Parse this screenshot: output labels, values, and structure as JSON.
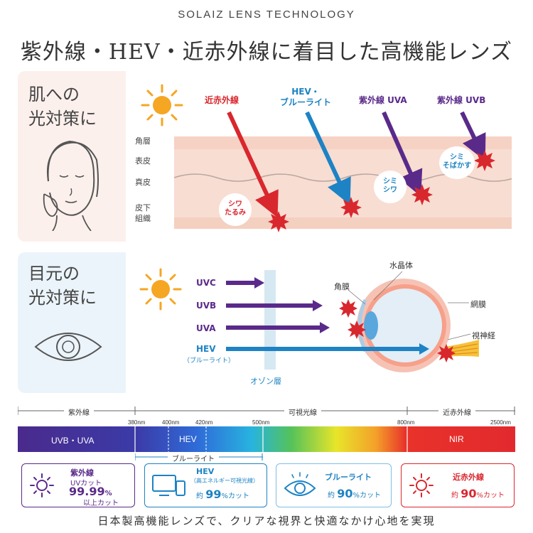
{
  "header": {
    "brand": "SOLAIZ LENS TECHNOLOGY",
    "headline": "紫外線・HEV・近赤外線に着目した高機能レンズ"
  },
  "skin": {
    "title_line1": "肌への",
    "title_line2": "光対策に",
    "layers": [
      "角層",
      "表皮",
      "真皮",
      "皮下",
      "組織"
    ],
    "arrows": [
      {
        "label": "近赤外線",
        "color": "#d9272e"
      },
      {
        "label_line1": "HEV・",
        "label_line2": "ブルーライト",
        "color": "#1d83c4"
      },
      {
        "label": "紫外線 UVA",
        "color": "#5a2a8a"
      },
      {
        "label": "紫外線 UVB",
        "color": "#5a2a8a"
      }
    ],
    "bubbles": [
      {
        "line1": "シワ",
        "line2": "たるみ"
      },
      {
        "line1": "シミ",
        "line2": "シワ"
      },
      {
        "line1": "シミ",
        "line2": "そばかす"
      }
    ]
  },
  "eye": {
    "title_line1": "目元の",
    "title_line2": "光対策に",
    "rays": [
      {
        "label": "UVC",
        "color": "#5a2a8a"
      },
      {
        "label": "UVB",
        "color": "#5a2a8a"
      },
      {
        "label": "UVA",
        "color": "#5a2a8a"
      },
      {
        "label": "HEV",
        "sub": "（ブルーライト）",
        "color": "#1d83c4"
      }
    ],
    "ozone": "オゾン層",
    "parts": {
      "lens": "水晶体",
      "cornea": "角膜",
      "retina": "網膜",
      "nerve": "視神経"
    }
  },
  "spectrum": {
    "regions": {
      "uv": "紫外線",
      "visible": "可視光線",
      "ir": "近赤外線"
    },
    "nm": [
      "380nm",
      "400nm",
      "420nm",
      "500nm",
      "800nm",
      "2500nm"
    ],
    "bands": {
      "uv": "UVB・UVA",
      "hev": "HEV",
      "nir": "NIR"
    },
    "bluelight": "ブルーライト"
  },
  "cards": [
    {
      "title": "紫外線",
      "sub": "UVカット",
      "value": "99.99",
      "unit": "%",
      "note": "以上カット",
      "color": "#5a2a8a",
      "icon": "sun-icon"
    },
    {
      "title": "HEV",
      "sub": "（高エネルギー可視光線）",
      "prefix": "約",
      "value": "99",
      "unit": "%カット",
      "color": "#1d83c4",
      "icon": "devices-icon"
    },
    {
      "title": "ブルーライト",
      "prefix": "約",
      "value": "90",
      "unit": "%カット",
      "color": "#1d83c4",
      "icon": "eye-icon"
    },
    {
      "title": "近赤外線",
      "prefix": "約",
      "value": "90",
      "unit": "%カット",
      "color": "#d9272e",
      "icon": "sun-icon"
    }
  ],
  "footer": "日本製高機能レンズで、クリアな視界と快適なかけ心地を実現"
}
